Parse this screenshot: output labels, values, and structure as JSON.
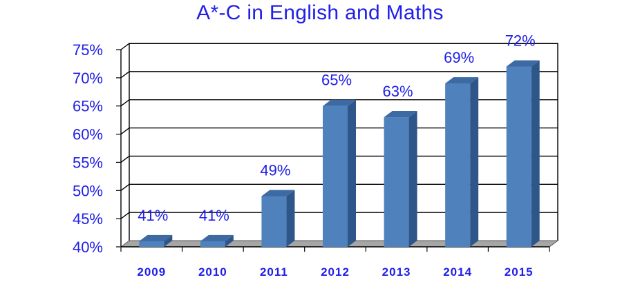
{
  "chart_data": {
    "type": "bar",
    "title": "A*-C in English and Maths",
    "categories": [
      "2009",
      "2010",
      "2011",
      "2012",
      "2013",
      "2014",
      "2015"
    ],
    "values": [
      41,
      41,
      49,
      65,
      63,
      69,
      72
    ],
    "data_labels": [
      "41%",
      "41%",
      "49%",
      "65%",
      "63%",
      "69%",
      "72%"
    ],
    "y_ticks": [
      "40%",
      "45%",
      "50%",
      "55%",
      "60%",
      "65%",
      "70%",
      "75%"
    ],
    "ylim": [
      40,
      75
    ],
    "xlabel": "",
    "ylabel": "",
    "grid": true,
    "legend": "none",
    "colors": {
      "bar_front": "#4f81bd",
      "bar_side": "#2f5688",
      "bar_top": "#3d6aa3",
      "text": "#2020e8",
      "floor": "#a6a6a6",
      "grid": "#000000"
    }
  }
}
